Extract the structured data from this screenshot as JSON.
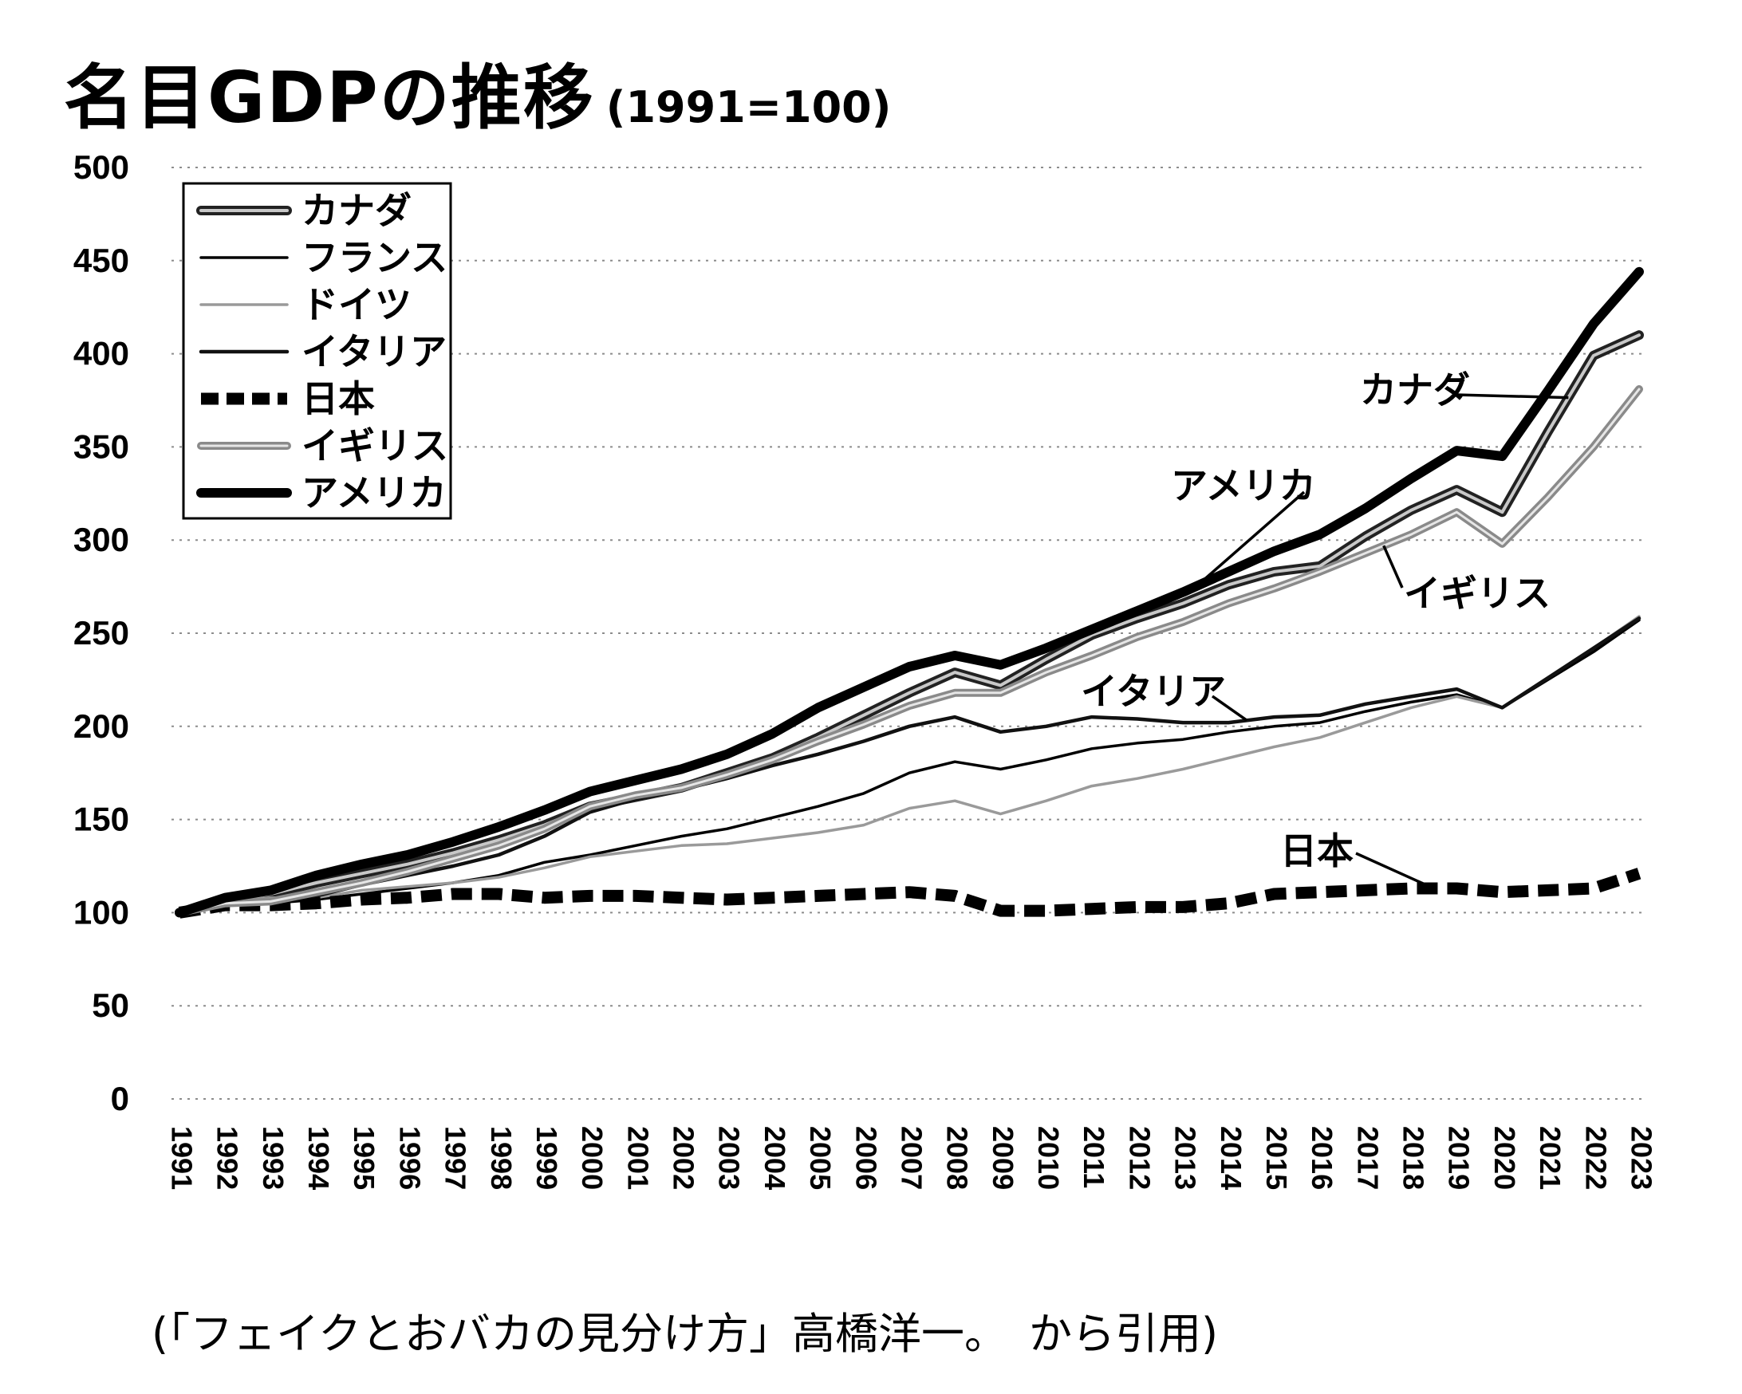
{
  "chart_data": {
    "type": "line",
    "title": "名目GDPの推移",
    "subtitle": "(1991=100)",
    "caption": "(「フェイクとおバカの見分け方」高橋洋一。　から引用)",
    "xlabel": "",
    "ylabel": "",
    "ylim": [
      0,
      500
    ],
    "yticks": [
      0,
      50,
      100,
      150,
      200,
      250,
      300,
      350,
      400,
      450,
      500
    ],
    "grid": "horizontal-dotted",
    "legend_position": "top-left",
    "x": [
      "1991",
      "1992",
      "1993",
      "1994",
      "1995",
      "1996",
      "1997",
      "1998",
      "1999",
      "2000",
      "2001",
      "2002",
      "2003",
      "2004",
      "2005",
      "2006",
      "2007",
      "2008",
      "2009",
      "2010",
      "2011",
      "2012",
      "2013",
      "2014",
      "2015",
      "2016",
      "2017",
      "2018",
      "2019",
      "2020",
      "2021",
      "2022",
      "2023"
    ],
    "series": [
      {
        "name": "カナダ",
        "style": "double",
        "color": "#333333",
        "values": [
          100,
          106,
          110,
          116,
          121,
          126,
          132,
          139,
          147,
          157,
          162,
          167,
          175,
          183,
          194,
          206,
          218,
          229,
          222,
          236,
          249,
          258,
          266,
          276,
          283,
          286,
          302,
          316,
          327,
          315,
          358,
          399,
          410
        ]
      },
      {
        "name": "フランス",
        "style": "thin",
        "color": "#000000",
        "values": [
          100,
          104,
          105,
          107,
          110,
          113,
          116,
          120,
          127,
          131,
          136,
          141,
          145,
          151,
          157,
          164,
          175,
          181,
          177,
          182,
          188,
          191,
          193,
          197,
          200,
          202,
          208,
          213,
          217,
          210,
          225,
          240,
          257
        ]
      },
      {
        "name": "ドイツ",
        "style": "thin-light",
        "color": "#9a9a9a",
        "values": [
          100,
          106,
          108,
          108,
          112,
          114,
          116,
          119,
          124,
          130,
          133,
          136,
          137,
          140,
          143,
          147,
          156,
          160,
          153,
          160,
          168,
          172,
          177,
          183,
          189,
          194,
          202,
          210,
          216,
          210,
          226,
          242,
          259
        ]
      },
      {
        "name": "イタリア",
        "style": "medium",
        "color": "#111111",
        "values": [
          100,
          105,
          106,
          109,
          115,
          120,
          125,
          131,
          141,
          154,
          161,
          166,
          172,
          179,
          185,
          192,
          200,
          205,
          197,
          200,
          205,
          204,
          202,
          202,
          205,
          206,
          212,
          216,
          220,
          210,
          226,
          242,
          258
        ]
      },
      {
        "name": "日本",
        "style": "dashed",
        "color": "#000000",
        "values": [
          100,
          104,
          104,
          105,
          107,
          108,
          110,
          110,
          108,
          109,
          109,
          108,
          107,
          108,
          109,
          110,
          111,
          109,
          101,
          101,
          102,
          103,
          103,
          105,
          110,
          111,
          112,
          113,
          113,
          111,
          112,
          113,
          121
        ]
      },
      {
        "name": "イギリス",
        "style": "gray-double",
        "color": "#7a7a7a",
        "values": [
          100,
          105,
          106,
          111,
          116,
          122,
          129,
          136,
          145,
          157,
          163,
          167,
          174,
          182,
          192,
          201,
          211,
          218,
          218,
          229,
          238,
          248,
          256,
          266,
          274,
          283,
          293,
          303,
          315,
          298,
          323,
          350,
          381
        ]
      },
      {
        "name": "アメリカ",
        "style": "thick",
        "color": "#000000",
        "values": [
          100,
          108,
          112,
          120,
          126,
          131,
          138,
          146,
          155,
          165,
          171,
          177,
          185,
          196,
          210,
          221,
          232,
          238,
          233,
          242,
          252,
          262,
          272,
          283,
          294,
          303,
          317,
          333,
          348,
          345,
          380,
          416,
          444
        ]
      }
    ],
    "annotations": [
      {
        "text": "カナダ",
        "series": "カナダ",
        "x": "2021"
      },
      {
        "text": "アメリカ",
        "series": "アメリカ",
        "x": "2013"
      },
      {
        "text": "イギリス",
        "series": "イギリス",
        "x": "2017"
      },
      {
        "text": "イタリア",
        "series": "イタリア",
        "x": "2014"
      },
      {
        "text": "日本",
        "series": "日本",
        "x": "2018"
      }
    ]
  }
}
